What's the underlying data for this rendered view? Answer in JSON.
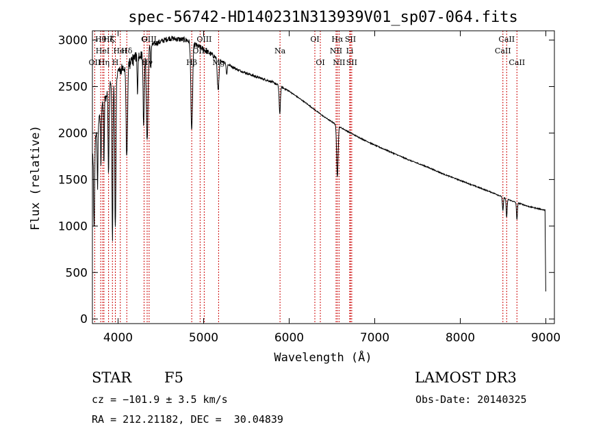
{
  "chart_data": {
    "type": "line",
    "title": "spec-56742-HD140231N313939V01_sp07-064.fits",
    "xlabel": "Wavelength (Å)",
    "ylabel": "Flux (relative)",
    "xlim": [
      3700,
      9100
    ],
    "ylim": [
      -50,
      3100
    ],
    "x_ticks": [
      4000,
      5000,
      6000,
      7000,
      8000,
      9000
    ],
    "y_ticks": [
      0,
      500,
      1000,
      1500,
      2000,
      2500,
      3000
    ],
    "x_tick_labels": [
      "4000",
      "5000",
      "6000",
      "7000",
      "8000",
      "9000"
    ],
    "y_tick_labels": [
      "0",
      "500",
      "1000",
      "1500",
      "2000",
      "2500",
      "3000"
    ],
    "continuum": [
      [
        3700,
        1800
      ],
      [
        3800,
        2300
      ],
      [
        3900,
        2550
      ],
      [
        4000,
        2700
      ],
      [
        4200,
        2850
      ],
      [
        4400,
        2950
      ],
      [
        4600,
        3020
      ],
      [
        4800,
        3000
      ],
      [
        5000,
        2900
      ],
      [
        5200,
        2780
      ],
      [
        5400,
        2680
      ],
      [
        5600,
        2610
      ],
      [
        5800,
        2550
      ],
      [
        6000,
        2450
      ],
      [
        6200,
        2320
      ],
      [
        6400,
        2180
      ],
      [
        6600,
        2060
      ],
      [
        6800,
        1960
      ],
      [
        7000,
        1870
      ],
      [
        7200,
        1790
      ],
      [
        7400,
        1710
      ],
      [
        7600,
        1640
      ],
      [
        7800,
        1560
      ],
      [
        8000,
        1490
      ],
      [
        8200,
        1420
      ],
      [
        8400,
        1350
      ],
      [
        8600,
        1270
      ],
      [
        8800,
        1210
      ],
      [
        8990,
        1170
      ],
      [
        9000,
        200
      ]
    ],
    "absorption_features": [
      {
        "x": 3720,
        "depth": 900,
        "width": 8
      },
      {
        "x": 3760,
        "depth": 700,
        "width": 6
      },
      {
        "x": 3800,
        "depth": 600,
        "width": 6
      },
      {
        "x": 3835,
        "depth": 700,
        "width": 6
      },
      {
        "x": 3889,
        "depth": 900,
        "width": 8
      },
      {
        "x": 3934,
        "depth": 1700,
        "width": 8
      },
      {
        "x": 3968,
        "depth": 1600,
        "width": 10
      },
      {
        "x": 4102,
        "depth": 1000,
        "width": 12
      },
      {
        "x": 4227,
        "depth": 400,
        "width": 6
      },
      {
        "x": 4300,
        "depth": 800,
        "width": 10
      },
      {
        "x": 4340,
        "depth": 1000,
        "width": 14
      },
      {
        "x": 4383,
        "depth": 250,
        "width": 6
      },
      {
        "x": 4861,
        "depth": 950,
        "width": 14
      },
      {
        "x": 5170,
        "depth": 350,
        "width": 14
      },
      {
        "x": 5270,
        "depth": 120,
        "width": 8
      },
      {
        "x": 5890,
        "depth": 300,
        "width": 10
      },
      {
        "x": 6563,
        "depth": 550,
        "width": 12
      },
      {
        "x": 8498,
        "depth": 150,
        "width": 8
      },
      {
        "x": 8542,
        "depth": 200,
        "width": 8
      },
      {
        "x": 8662,
        "depth": 180,
        "width": 8
      }
    ],
    "line_markers": [
      {
        "x": 3727,
        "label": "OII",
        "row": 3
      },
      {
        "x": 3797,
        "label": "Hθ",
        "row": 1
      },
      {
        "x": 3820,
        "label": "HeI",
        "row": 2
      },
      {
        "x": 3835,
        "label": "Hη",
        "row": 3
      },
      {
        "x": 3889,
        "label": "Hζ",
        "row": 1
      },
      {
        "x": 3934,
        "label": "K",
        "row": 1
      },
      {
        "x": 3968,
        "label": "H",
        "row": 3
      },
      {
        "x": 4026,
        "label": "HeI",
        "row": 2
      },
      {
        "x": 4102,
        "label": "Hδ",
        "row": 2
      },
      {
        "x": 4304,
        "label": "G",
        "row": 1
      },
      {
        "x": 4340,
        "label": "Hγ",
        "row": 3
      },
      {
        "x": 4363,
        "label": "OIII",
        "row": 1
      },
      {
        "x": 4861,
        "label": "Hβ",
        "row": 3
      },
      {
        "x": 4959,
        "label": "OIII",
        "row": 2
      },
      {
        "x": 5007,
        "label": "OIII",
        "row": 1
      },
      {
        "x": 5175,
        "label": "Mg",
        "row": 3
      },
      {
        "x": 5893,
        "label": "Na",
        "row": 2
      },
      {
        "x": 6300,
        "label": "OI",
        "row": 1
      },
      {
        "x": 6364,
        "label": "OI",
        "row": 3
      },
      {
        "x": 6548,
        "label": "NII",
        "row": 2
      },
      {
        "x": 6563,
        "label": "Hα",
        "row": 1
      },
      {
        "x": 6583,
        "label": "NII",
        "row": 3
      },
      {
        "x": 6708,
        "label": "Li",
        "row": 2
      },
      {
        "x": 6716,
        "label": "SII",
        "row": 1
      },
      {
        "x": 6731,
        "label": "SII",
        "row": 3
      },
      {
        "x": 8498,
        "label": "CaII",
        "row": 2
      },
      {
        "x": 8542,
        "label": "CaII",
        "row": 1
      },
      {
        "x": 8662,
        "label": "CaII",
        "row": 3
      }
    ],
    "line_style": {
      "spectrum_color": "#000000",
      "marker_color": "#cc0000"
    }
  },
  "info": {
    "object_class": "STAR",
    "subclass": "F5",
    "survey": "LAMOST DR3",
    "redshift": "cz = −101.9 ± 3.5 km/s",
    "obs_date": "Obs-Date: 20140325",
    "coords": "RA = 212.21182, DEC =  30.04839"
  }
}
